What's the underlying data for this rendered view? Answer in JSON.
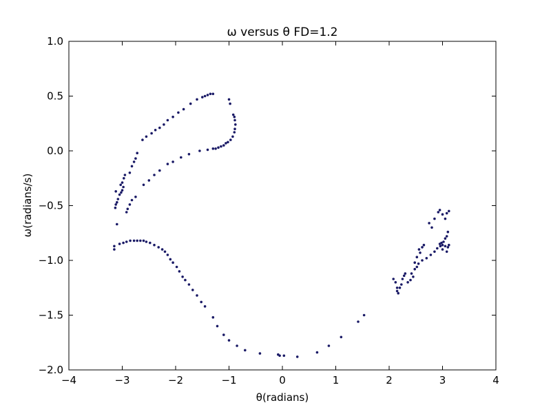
{
  "title": "ω   versus   θ   FD=1.2",
  "chart_data": {
    "type": "scatter",
    "title": "ω   versus   θ   FD=1.2",
    "xlabel": "θ(radians)",
    "ylabel": "ω(radians/s)",
    "xlim": [
      -4,
      4
    ],
    "ylim": [
      -2.0,
      1.0
    ],
    "x_ticks": [
      "−4",
      "−3",
      "−2",
      "−1",
      "0",
      "1",
      "2",
      "3",
      "4"
    ],
    "y_ticks": [
      "1.0",
      "0.5",
      "0.0",
      "−0.5",
      "−1.0",
      "−1.5",
      "−2.0"
    ],
    "grid": false,
    "legend": "none",
    "marker_color": "#1a1a66",
    "points": [
      [
        -1.3,
        0.52
      ],
      [
        -1.35,
        0.52
      ],
      [
        -1.4,
        0.51
      ],
      [
        -1.45,
        0.5
      ],
      [
        -1.5,
        0.49
      ],
      [
        -1.6,
        0.47
      ],
      [
        -1.72,
        0.43
      ],
      [
        -1.85,
        0.38
      ],
      [
        -1.95,
        0.35
      ],
      [
        -2.05,
        0.31
      ],
      [
        -2.15,
        0.28
      ],
      [
        -2.22,
        0.24
      ],
      [
        -2.3,
        0.21
      ],
      [
        -2.38,
        0.19
      ],
      [
        -2.45,
        0.16
      ],
      [
        -2.55,
        0.13
      ],
      [
        -2.62,
        0.1
      ],
      [
        -1.0,
        0.47
      ],
      [
        -0.98,
        0.43
      ],
      [
        -0.92,
        0.33
      ],
      [
        -0.9,
        0.31
      ],
      [
        -0.89,
        0.28
      ],
      [
        -0.88,
        0.24
      ],
      [
        -0.89,
        0.2
      ],
      [
        -0.9,
        0.17
      ],
      [
        -0.93,
        0.13
      ],
      [
        -0.97,
        0.1
      ],
      [
        -1.02,
        0.08
      ],
      [
        -1.06,
        0.07
      ],
      [
        -1.1,
        0.05
      ],
      [
        -1.15,
        0.04
      ],
      [
        -1.2,
        0.03
      ],
      [
        -1.25,
        0.02
      ],
      [
        -1.3,
        0.02
      ],
      [
        -1.4,
        0.01
      ],
      [
        -1.55,
        0.0
      ],
      [
        -1.75,
        -0.03
      ],
      [
        -1.9,
        -0.06
      ],
      [
        -2.05,
        -0.1
      ],
      [
        -2.15,
        -0.12
      ],
      [
        -2.3,
        -0.18
      ],
      [
        -2.4,
        -0.22
      ],
      [
        -2.5,
        -0.27
      ],
      [
        -2.6,
        -0.31
      ],
      [
        -2.75,
        -0.42
      ],
      [
        -2.82,
        -0.45
      ],
      [
        -2.86,
        -0.49
      ],
      [
        -2.9,
        -0.53
      ],
      [
        -2.92,
        -0.56
      ],
      [
        -2.72,
        -0.02
      ],
      [
        -2.75,
        -0.07
      ],
      [
        -2.78,
        -0.1
      ],
      [
        -2.82,
        -0.14
      ],
      [
        -2.86,
        -0.2
      ],
      [
        -2.95,
        -0.22
      ],
      [
        -2.97,
        -0.25
      ],
      [
        -3.0,
        -0.29
      ],
      [
        -3.03,
        -0.31
      ],
      [
        -2.98,
        -0.33
      ],
      [
        -3.0,
        -0.36
      ],
      [
        -3.02,
        -0.38
      ],
      [
        -3.05,
        -0.4
      ],
      [
        -3.08,
        -0.44
      ],
      [
        -3.1,
        -0.47
      ],
      [
        -3.12,
        -0.49
      ],
      [
        -3.13,
        -0.52
      ],
      [
        -3.12,
        -0.37
      ],
      [
        -3.1,
        -0.67
      ],
      [
        -3.15,
        -0.87
      ],
      [
        -3.15,
        -0.9
      ],
      [
        -3.05,
        -0.85
      ],
      [
        -2.98,
        -0.84
      ],
      [
        -2.92,
        -0.83
      ],
      [
        -2.85,
        -0.82
      ],
      [
        -2.78,
        -0.82
      ],
      [
        -2.72,
        -0.82
      ],
      [
        -2.66,
        -0.82
      ],
      [
        -2.6,
        -0.82
      ],
      [
        -2.55,
        -0.83
      ],
      [
        -2.48,
        -0.84
      ],
      [
        -2.4,
        -0.86
      ],
      [
        -2.32,
        -0.88
      ],
      [
        -2.25,
        -0.9
      ],
      [
        -2.2,
        -0.92
      ],
      [
        -2.15,
        -0.95
      ],
      [
        -2.1,
        -0.99
      ],
      [
        -2.05,
        -1.02
      ],
      [
        -1.98,
        -1.06
      ],
      [
        -1.93,
        -1.1
      ],
      [
        -1.87,
        -1.15
      ],
      [
        -1.82,
        -1.18
      ],
      [
        -1.75,
        -1.22
      ],
      [
        -1.68,
        -1.27
      ],
      [
        -1.6,
        -1.32
      ],
      [
        -1.52,
        -1.38
      ],
      [
        -1.45,
        -1.42
      ],
      [
        -1.3,
        -1.52
      ],
      [
        -1.22,
        -1.6
      ],
      [
        -1.1,
        -1.68
      ],
      [
        -1.0,
        -1.73
      ],
      [
        -0.85,
        -1.78
      ],
      [
        -0.7,
        -1.82
      ],
      [
        -0.42,
        -1.85
      ],
      [
        -0.08,
        -1.86
      ],
      [
        -0.05,
        -1.87
      ],
      [
        0.03,
        -1.87
      ],
      [
        0.28,
        -1.88
      ],
      [
        0.65,
        -1.84
      ],
      [
        0.87,
        -1.78
      ],
      [
        1.1,
        -1.7
      ],
      [
        1.42,
        -1.56
      ],
      [
        1.53,
        -1.5
      ],
      [
        2.08,
        -1.17
      ],
      [
        2.12,
        -1.2
      ],
      [
        2.15,
        -1.25
      ],
      [
        2.15,
        -1.28
      ],
      [
        2.17,
        -1.3
      ],
      [
        2.2,
        -1.25
      ],
      [
        2.23,
        -1.22
      ],
      [
        2.25,
        -1.17
      ],
      [
        2.28,
        -1.14
      ],
      [
        2.3,
        -1.12
      ],
      [
        2.35,
        -1.2
      ],
      [
        2.4,
        -1.18
      ],
      [
        2.45,
        -1.15
      ],
      [
        2.48,
        -1.08
      ],
      [
        2.52,
        -1.06
      ],
      [
        2.55,
        -1.03
      ],
      [
        2.62,
        -1.0
      ],
      [
        2.7,
        -0.98
      ],
      [
        2.78,
        -0.95
      ],
      [
        2.85,
        -0.92
      ],
      [
        2.9,
        -0.89
      ],
      [
        2.95,
        -0.85
      ],
      [
        3.0,
        -0.86
      ],
      [
        3.05,
        -0.87
      ],
      [
        3.1,
        -0.88
      ],
      [
        3.12,
        -0.86
      ],
      [
        2.42,
        -1.12
      ],
      [
        2.48,
        -1.02
      ],
      [
        2.52,
        -0.97
      ],
      [
        2.56,
        -0.9
      ],
      [
        2.58,
        -0.93
      ],
      [
        2.62,
        -0.88
      ],
      [
        2.65,
        -0.86
      ],
      [
        2.75,
        -0.66
      ],
      [
        2.8,
        -0.7
      ],
      [
        2.85,
        -0.62
      ],
      [
        2.92,
        -0.56
      ],
      [
        2.95,
        -0.54
      ],
      [
        3.0,
        -0.58
      ],
      [
        3.05,
        -0.62
      ],
      [
        3.08,
        -0.57
      ],
      [
        3.12,
        -0.55
      ],
      [
        3.1,
        -0.74
      ],
      [
        3.08,
        -0.78
      ],
      [
        3.05,
        -0.8
      ],
      [
        3.02,
        -0.83
      ],
      [
        2.98,
        -0.84
      ],
      [
        2.96,
        -0.87
      ],
      [
        3.0,
        -0.9
      ],
      [
        3.08,
        -0.92
      ]
    ]
  }
}
